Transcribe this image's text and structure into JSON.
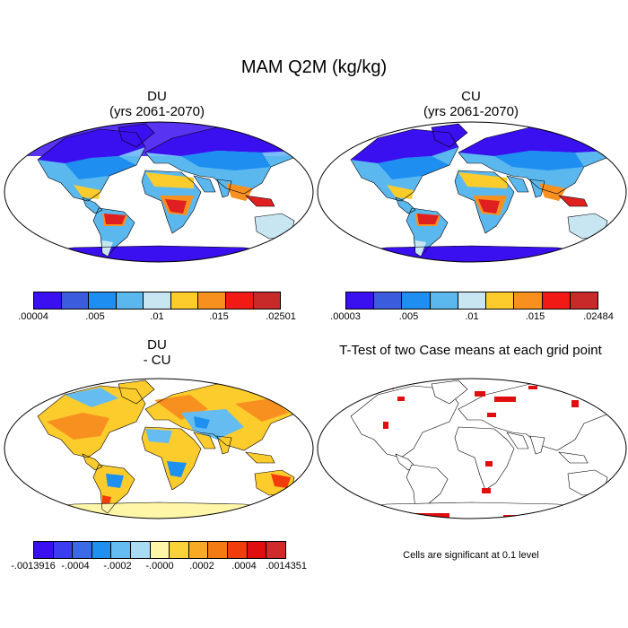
{
  "figure": {
    "title": "MAM Q2M (kg/kg)",
    "panels": [
      {
        "id": "du",
        "title_line1": "DU",
        "title_line2": "(yrs 2061-2070)"
      },
      {
        "id": "cu",
        "title_line1": "CU",
        "title_line2": "(yrs 2061-2070)"
      },
      {
        "id": "diff",
        "title_line1": "DU",
        "title_line2": "- CU"
      },
      {
        "id": "ttest",
        "title_line1": "T-Test of two Case means at each grid point"
      }
    ],
    "colorbars": {
      "du": {
        "labels": [
          ".00004",
          ".005",
          ".01",
          ".015",
          ".02501"
        ],
        "colors": [
          "#3a10f0",
          "#3c5cde",
          "#1e8ef0",
          "#5ab8ee",
          "#c8e6f2",
          "#fccc2c",
          "#f89020",
          "#f21a14",
          "#c82a2a"
        ]
      },
      "cu": {
        "labels": [
          ".00003",
          ".005",
          ".01",
          ".015",
          ".02484"
        ],
        "colors": [
          "#3a10f0",
          "#3c5cde",
          "#1e8ef0",
          "#5ab8ee",
          "#c8e6f2",
          "#fccc2c",
          "#f89020",
          "#f21a14",
          "#c82a2a"
        ]
      },
      "diff": {
        "labels": [
          "-.0013916",
          "-.0004",
          "-.0002",
          "-.0000",
          ".0002",
          ".0004",
          ".0014351"
        ],
        "colors": [
          "#3a10f0",
          "#3a3ef0",
          "#3c6ae6",
          "#1e90f0",
          "#64bcf0",
          "#a8dcf4",
          "#fff6a8",
          "#fcd23a",
          "#f8aa24",
          "#f47a14",
          "#f23c0c",
          "#e00e0e",
          "#d02a2a"
        ]
      }
    },
    "note": "Cells are significant at 0.1 level"
  }
}
